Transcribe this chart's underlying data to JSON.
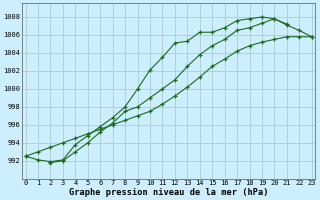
{
  "x": [
    0,
    1,
    2,
    3,
    4,
    5,
    6,
    7,
    8,
    9,
    10,
    11,
    12,
    13,
    14,
    15,
    16,
    17,
    18,
    19,
    20,
    21,
    22,
    23
  ],
  "series1": [
    992.5,
    992.1,
    991.9,
    992.1,
    993.8,
    994.8,
    995.8,
    996.8,
    998.0,
    1000.0,
    1002.1,
    1003.5,
    1005.1,
    1005.3,
    1006.3,
    1006.3,
    1006.8,
    1007.6,
    1007.8,
    1008.0,
    1007.8,
    1007.2,
    null,
    null
  ],
  "series2": [
    992.5,
    993.0,
    993.5,
    994.0,
    994.5,
    995.0,
    995.5,
    996.0,
    996.5,
    997.0,
    997.5,
    998.3,
    999.2,
    1000.2,
    1001.3,
    1002.5,
    1003.3,
    1004.2,
    1004.8,
    1005.2,
    1005.5,
    1005.8,
    1005.8,
    1005.8
  ],
  "series3": [
    null,
    null,
    991.8,
    992.0,
    993.0,
    994.0,
    995.2,
    996.2,
    997.5,
    998.0,
    999.0,
    1000.0,
    1001.0,
    1002.5,
    1003.8,
    1004.8,
    1005.5,
    1006.5,
    1006.8,
    1007.3,
    1007.8,
    1007.1,
    1006.5,
    1005.8
  ],
  "line_color": "#1a6b1a",
  "bg_color": "#cceeff",
  "grid_color": "#aacccc",
  "xlabel": "Graphe pression niveau de la mer (hPa)",
  "ylim_min": 990,
  "ylim_max": 1009.5,
  "xlim_min": -0.3,
  "xlim_max": 23.3,
  "yticks": [
    992,
    994,
    996,
    998,
    1000,
    1002,
    1004,
    1006,
    1008
  ],
  "xticks": [
    0,
    1,
    2,
    3,
    4,
    5,
    6,
    7,
    8,
    9,
    10,
    11,
    12,
    13,
    14,
    15,
    16,
    17,
    18,
    19,
    20,
    21,
    22,
    23
  ]
}
